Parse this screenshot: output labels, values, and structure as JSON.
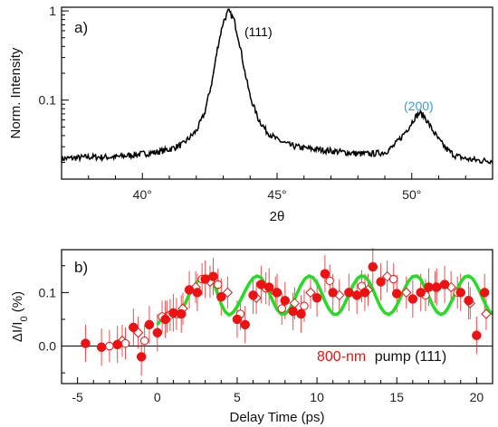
{
  "colors": {
    "axis": "#000000",
    "xrd_line": "#000000",
    "label_111": "#000000",
    "label_200": "#3a9be0",
    "fit": "#22dd22",
    "marker": "#ee1111",
    "pump_text": "#ee1111",
    "zero_line": "#000000"
  },
  "chart_data": [
    {
      "type": "line",
      "panel_label": "a)",
      "xlabel": "2θ",
      "ylabel": "Norm. Intensity",
      "y_scale": "log",
      "xlim": [
        37,
        53
      ],
      "ylim": [
        0.013,
        1.1
      ],
      "xticks": [
        40,
        45,
        50
      ],
      "xtick_labels": [
        "40°",
        "45°",
        "50°"
      ],
      "yticks": [
        1,
        0.1
      ],
      "ytick_labels": [
        "1",
        "0.1"
      ],
      "grid": false,
      "peaks": [
        {
          "label": "(111)",
          "center": 43.2,
          "height": 1.0
        },
        {
          "label": "(200)",
          "center": 50.3,
          "height": 0.072
        }
      ],
      "series": [
        {
          "x": [
            37.0,
            38.0,
            39.0,
            39.5,
            40.0,
            40.5,
            41.0,
            41.5,
            42.0,
            42.3,
            42.6,
            42.8,
            43.0,
            43.2,
            43.4,
            43.6,
            43.8,
            44.0,
            44.3,
            44.6,
            45.0,
            45.5,
            46.0,
            46.5,
            47.0,
            47.5,
            48.0,
            48.5,
            49.0,
            49.3,
            49.6,
            49.9,
            50.1,
            50.3,
            50.5,
            50.7,
            51.0,
            51.3,
            51.6,
            52.0,
            52.5,
            53.0
          ],
          "y": [
            0.022,
            0.023,
            0.023,
            0.024,
            0.025,
            0.026,
            0.028,
            0.032,
            0.045,
            0.07,
            0.17,
            0.4,
            0.75,
            1.0,
            0.8,
            0.45,
            0.21,
            0.11,
            0.062,
            0.045,
            0.036,
            0.031,
            0.029,
            0.028,
            0.027,
            0.026,
            0.025,
            0.025,
            0.026,
            0.03,
            0.038,
            0.05,
            0.063,
            0.072,
            0.064,
            0.05,
            0.036,
            0.028,
            0.024,
            0.022,
            0.021,
            0.021
          ]
        }
      ]
    },
    {
      "type": "scatter",
      "panel_label": "b)",
      "xlabel": "Delay Time (ps)",
      "ylabel": "ΔI/I",
      "ylabel_sub": "0",
      "ylabel_unit": " (%)",
      "xlim": [
        -6,
        21
      ],
      "ylim": [
        -0.07,
        0.18
      ],
      "xticks": [
        -5,
        0,
        5,
        10,
        15,
        20
      ],
      "xtick_labels": [
        "-5",
        "0",
        "5",
        "10",
        "15",
        "20"
      ],
      "yticks": [
        0.0,
        0.1
      ],
      "ytick_labels": [
        "0.0",
        "0.1"
      ],
      "grid": false,
      "zero_line": true,
      "annotation": {
        "pump_text": "800-nm",
        "rest_text": "pump  (111)"
      },
      "fit": {
        "x": [
          0.0,
          0.25,
          0.5,
          0.75,
          1.0,
          1.25,
          1.5,
          1.75,
          2.0,
          2.25,
          2.5,
          2.75,
          3.0,
          3.25,
          3.5,
          3.75,
          4.0,
          4.25,
          4.5,
          4.75,
          5.0,
          5.25,
          5.5,
          5.75,
          6.0,
          6.25,
          6.5,
          6.75,
          7.0,
          7.25,
          7.5,
          7.75,
          8.0,
          8.25,
          8.5,
          8.75,
          9.0,
          9.25,
          9.5,
          9.75,
          10.0,
          10.25,
          10.5,
          10.75,
          11.0,
          11.25,
          11.5,
          11.75,
          12.0,
          12.25,
          12.5,
          12.75,
          13.0,
          13.25,
          13.5,
          13.75,
          14.0,
          14.25,
          14.5,
          14.75,
          15.0,
          15.25,
          15.5,
          15.75,
          16.0,
          16.25,
          16.5,
          16.75,
          17.0,
          17.25,
          17.5,
          17.75,
          18.0,
          18.25,
          18.5,
          18.75,
          19.0,
          19.25,
          19.5,
          19.75,
          20.0,
          20.25,
          20.5,
          20.75,
          21.0
        ],
        "y": [
          0.04,
          0.05,
          0.058,
          0.06,
          0.058,
          0.056,
          0.064,
          0.08,
          0.097,
          0.11,
          0.12,
          0.127,
          0.131,
          0.13,
          0.12,
          0.1,
          0.078,
          0.064,
          0.058,
          0.063,
          0.074,
          0.088,
          0.103,
          0.117,
          0.127,
          0.131,
          0.128,
          0.116,
          0.1,
          0.083,
          0.068,
          0.06,
          0.06,
          0.067,
          0.081,
          0.098,
          0.114,
          0.126,
          0.131,
          0.128,
          0.118,
          0.102,
          0.084,
          0.069,
          0.06,
          0.059,
          0.066,
          0.08,
          0.097,
          0.113,
          0.125,
          0.131,
          0.13,
          0.121,
          0.106,
          0.088,
          0.072,
          0.062,
          0.059,
          0.064,
          0.076,
          0.092,
          0.108,
          0.122,
          0.13,
          0.131,
          0.125,
          0.11,
          0.093,
          0.076,
          0.064,
          0.059,
          0.062,
          0.073,
          0.088,
          0.105,
          0.119,
          0.129,
          0.131,
          0.126,
          0.114,
          0.098,
          0.081,
          0.067,
          0.06
        ]
      },
      "filled_points": {
        "x": [
          -4.5,
          -3.5,
          -2.5,
          -1.5,
          -1.0,
          -0.5,
          0.0,
          0.5,
          1.0,
          1.5,
          2.0,
          2.5,
          3.0,
          3.5,
          4.0,
          5.0,
          5.5,
          6.0,
          6.5,
          7.0,
          7.5,
          8.0,
          8.5,
          9.0,
          10.0,
          10.5,
          11.0,
          12.0,
          12.5,
          13.0,
          13.5,
          14.0,
          15.0,
          16.0,
          16.5,
          17.0,
          17.5,
          18.0,
          19.0,
          19.5,
          20.0,
          20.5
        ],
        "y": [
          0.005,
          -0.002,
          0.003,
          0.035,
          -0.02,
          0.04,
          0.025,
          0.05,
          0.062,
          0.06,
          0.105,
          0.1,
          0.125,
          0.13,
          0.092,
          0.05,
          0.04,
          0.095,
          0.115,
          0.11,
          0.1,
          0.085,
          0.065,
          0.06,
          0.09,
          0.135,
          0.1,
          0.1,
          0.095,
          0.1,
          0.148,
          0.12,
          0.098,
          0.088,
          0.1,
          0.11,
          0.11,
          0.115,
          0.1,
          0.085,
          0.02,
          0.1
        ]
      },
      "open_circle_points": {
        "x": [
          -3.0,
          -2.0,
          -0.8,
          0.3,
          0.8,
          1.2,
          2.8,
          3.8,
          5.2,
          6.8,
          7.8,
          9.2,
          10.8,
          12.8,
          14.8,
          16.8,
          18.8
        ],
        "y": [
          0.0,
          0.005,
          0.01,
          0.055,
          0.058,
          0.06,
          0.125,
          0.115,
          0.06,
          0.108,
          0.07,
          0.075,
          0.122,
          0.112,
          0.125,
          0.095,
          0.1
        ]
      },
      "open_diamond_points": {
        "x": [
          -2.2,
          -1.2,
          0.6,
          1.6,
          2.4,
          3.3,
          4.4,
          6.2,
          7.4,
          8.6,
          9.6,
          11.4,
          13.2,
          14.4,
          15.6,
          17.4,
          18.4,
          19.6,
          20.6
        ],
        "y": [
          0.01,
          0.025,
          0.055,
          0.07,
          0.11,
          0.12,
          0.1,
          0.09,
          0.1,
          0.08,
          0.1,
          0.095,
          0.105,
          0.13,
          0.1,
          0.11,
          0.11,
          0.08,
          0.06
        ]
      }
    }
  ]
}
